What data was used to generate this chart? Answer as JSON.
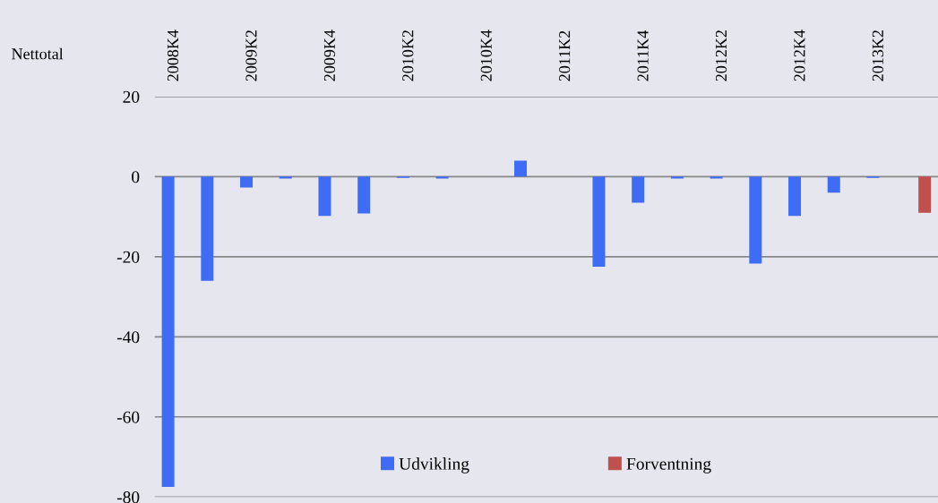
{
  "chart_data": {
    "type": "bar",
    "ylabel": "Nettotal",
    "categories": [
      "2008K4",
      null,
      "2009K2",
      null,
      "2009K4",
      null,
      "2010K2",
      null,
      "2010K4",
      null,
      "2011K2",
      null,
      "2011K4",
      null,
      "2012K2",
      null,
      "2012K4",
      null,
      "2013K2",
      null
    ],
    "series": [
      {
        "name": "Udvikling",
        "color": "#3f6cf5",
        "values": [
          -77.5,
          -26,
          -2.7,
          -0.5,
          -9.8,
          -9.2,
          -0.3,
          -0.5,
          null,
          4,
          null,
          -22.5,
          -6.5,
          -0.5,
          -0.5,
          -21.7,
          -9.8,
          -4,
          -0.3,
          null
        ]
      },
      {
        "name": "Forventning",
        "color": "#c0504d",
        "values": [
          null,
          null,
          null,
          null,
          null,
          null,
          null,
          null,
          null,
          null,
          null,
          null,
          null,
          null,
          null,
          null,
          null,
          null,
          null,
          -9
        ]
      }
    ],
    "ylim": [
      -80,
      20
    ],
    "yticks": [
      -80,
      -60,
      -40,
      -20,
      0,
      20
    ],
    "grid": "y",
    "legend": "bottom"
  }
}
